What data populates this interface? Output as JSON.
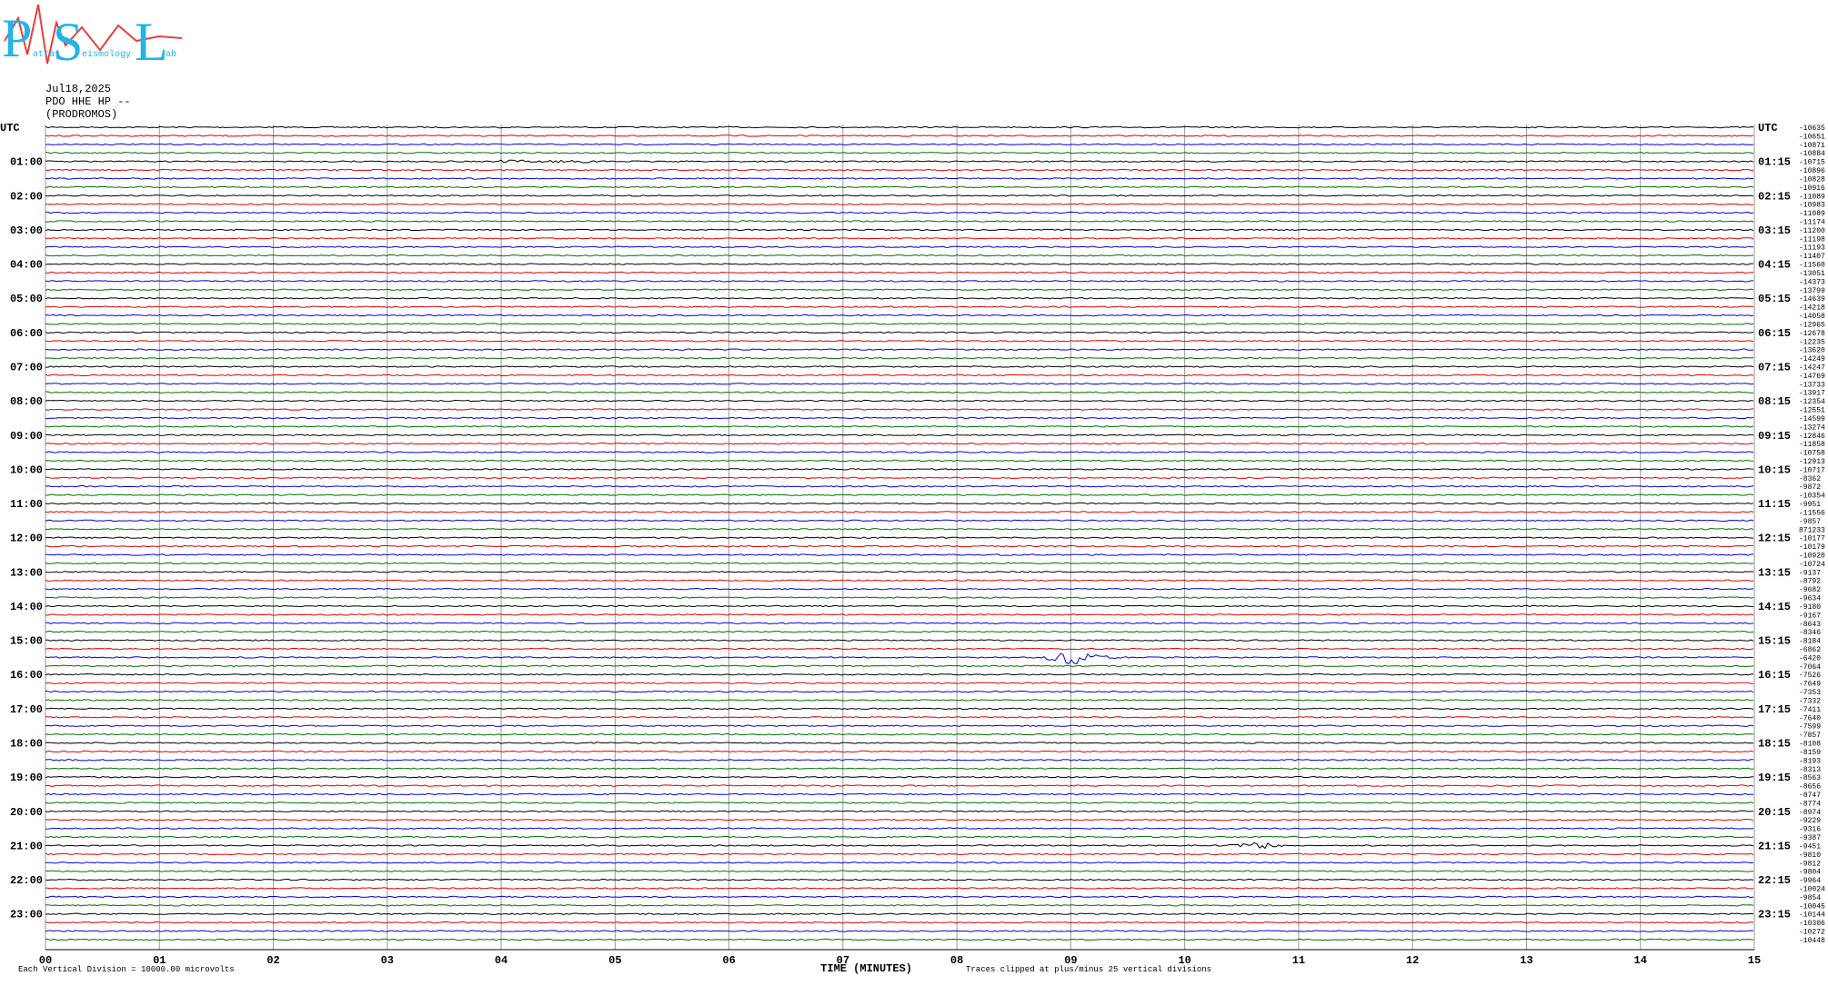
{
  "logo": {
    "letters": [
      "P",
      "S",
      "L"
    ],
    "words": [
      "atras",
      "eismology",
      "ab"
    ]
  },
  "header": {
    "date": "Jul18,2025",
    "station": "PDO HHE HP --",
    "site": "(PRODROMOS)"
  },
  "left_labels": [
    "UTC",
    "01:00",
    "02:00",
    "03:00",
    "04:00",
    "05:00",
    "06:00",
    "07:00",
    "08:00",
    "09:00",
    "10:00",
    "11:00",
    "12:00",
    "13:00",
    "14:00",
    "15:00",
    "16:00",
    "17:00",
    "18:00",
    "19:00",
    "20:00",
    "21:00",
    "22:00",
    "23:00"
  ],
  "right_labels": [
    "UTC",
    "01:15",
    "02:15",
    "03:15",
    "04:15",
    "05:15",
    "06:15",
    "07:15",
    "08:15",
    "09:15",
    "10:15",
    "11:15",
    "12:15",
    "13:15",
    "14:15",
    "15:15",
    "16:15",
    "17:15",
    "18:15",
    "19:15",
    "20:15",
    "21:15",
    "22:15",
    "23:15"
  ],
  "right_values": [
    -10635,
    -10651,
    -10871,
    -10884,
    -10715,
    -10896,
    -10828,
    -10916,
    -11089,
    -10983,
    -11089,
    -11174,
    -11200,
    -11198,
    -11193,
    -11407,
    -11560,
    -13051,
    -14373,
    -13799,
    -14639,
    -14218,
    -14058,
    -12965,
    -12678,
    -12235,
    -13620,
    -14249,
    -14247,
    -14769,
    -13733,
    -13917,
    -12354,
    -12551,
    -14599,
    -13274,
    -12846,
    -11858,
    -10758,
    -12913,
    -10717,
    -8362,
    -9872,
    -10354,
    -9951,
    -11556,
    -9857,
    871233,
    -10177,
    -10179,
    -10920,
    -10724,
    -9137,
    -8792,
    -9682,
    -9634,
    -9180,
    -9167,
    -8643,
    -8346,
    -8184,
    -6862,
    -6420,
    -7064,
    -7526,
    -7649,
    -7353,
    -7332,
    -7411,
    -7640,
    -7599,
    -7857,
    -8108,
    -8159,
    -8193,
    -8313,
    -8563,
    -8656,
    -8747,
    -8774,
    -8974,
    -9229,
    -9316,
    -9387,
    -9451,
    -9810,
    -9812,
    -9804,
    -9964,
    -10024,
    -9854,
    -10045,
    -10144,
    -10306,
    -10272,
    -10448
  ],
  "x_ticks": [
    "00",
    "01",
    "02",
    "03",
    "04",
    "05",
    "06",
    "07",
    "08",
    "09",
    "10",
    "11",
    "12",
    "13",
    "14",
    "15"
  ],
  "x_label": "TIME (MINUTES)",
  "footer_left": "Each Vertical Division = 10000.00 microvolts",
  "footer_right": "Traces clipped at plus/minus 25 vertical divisions"
}
